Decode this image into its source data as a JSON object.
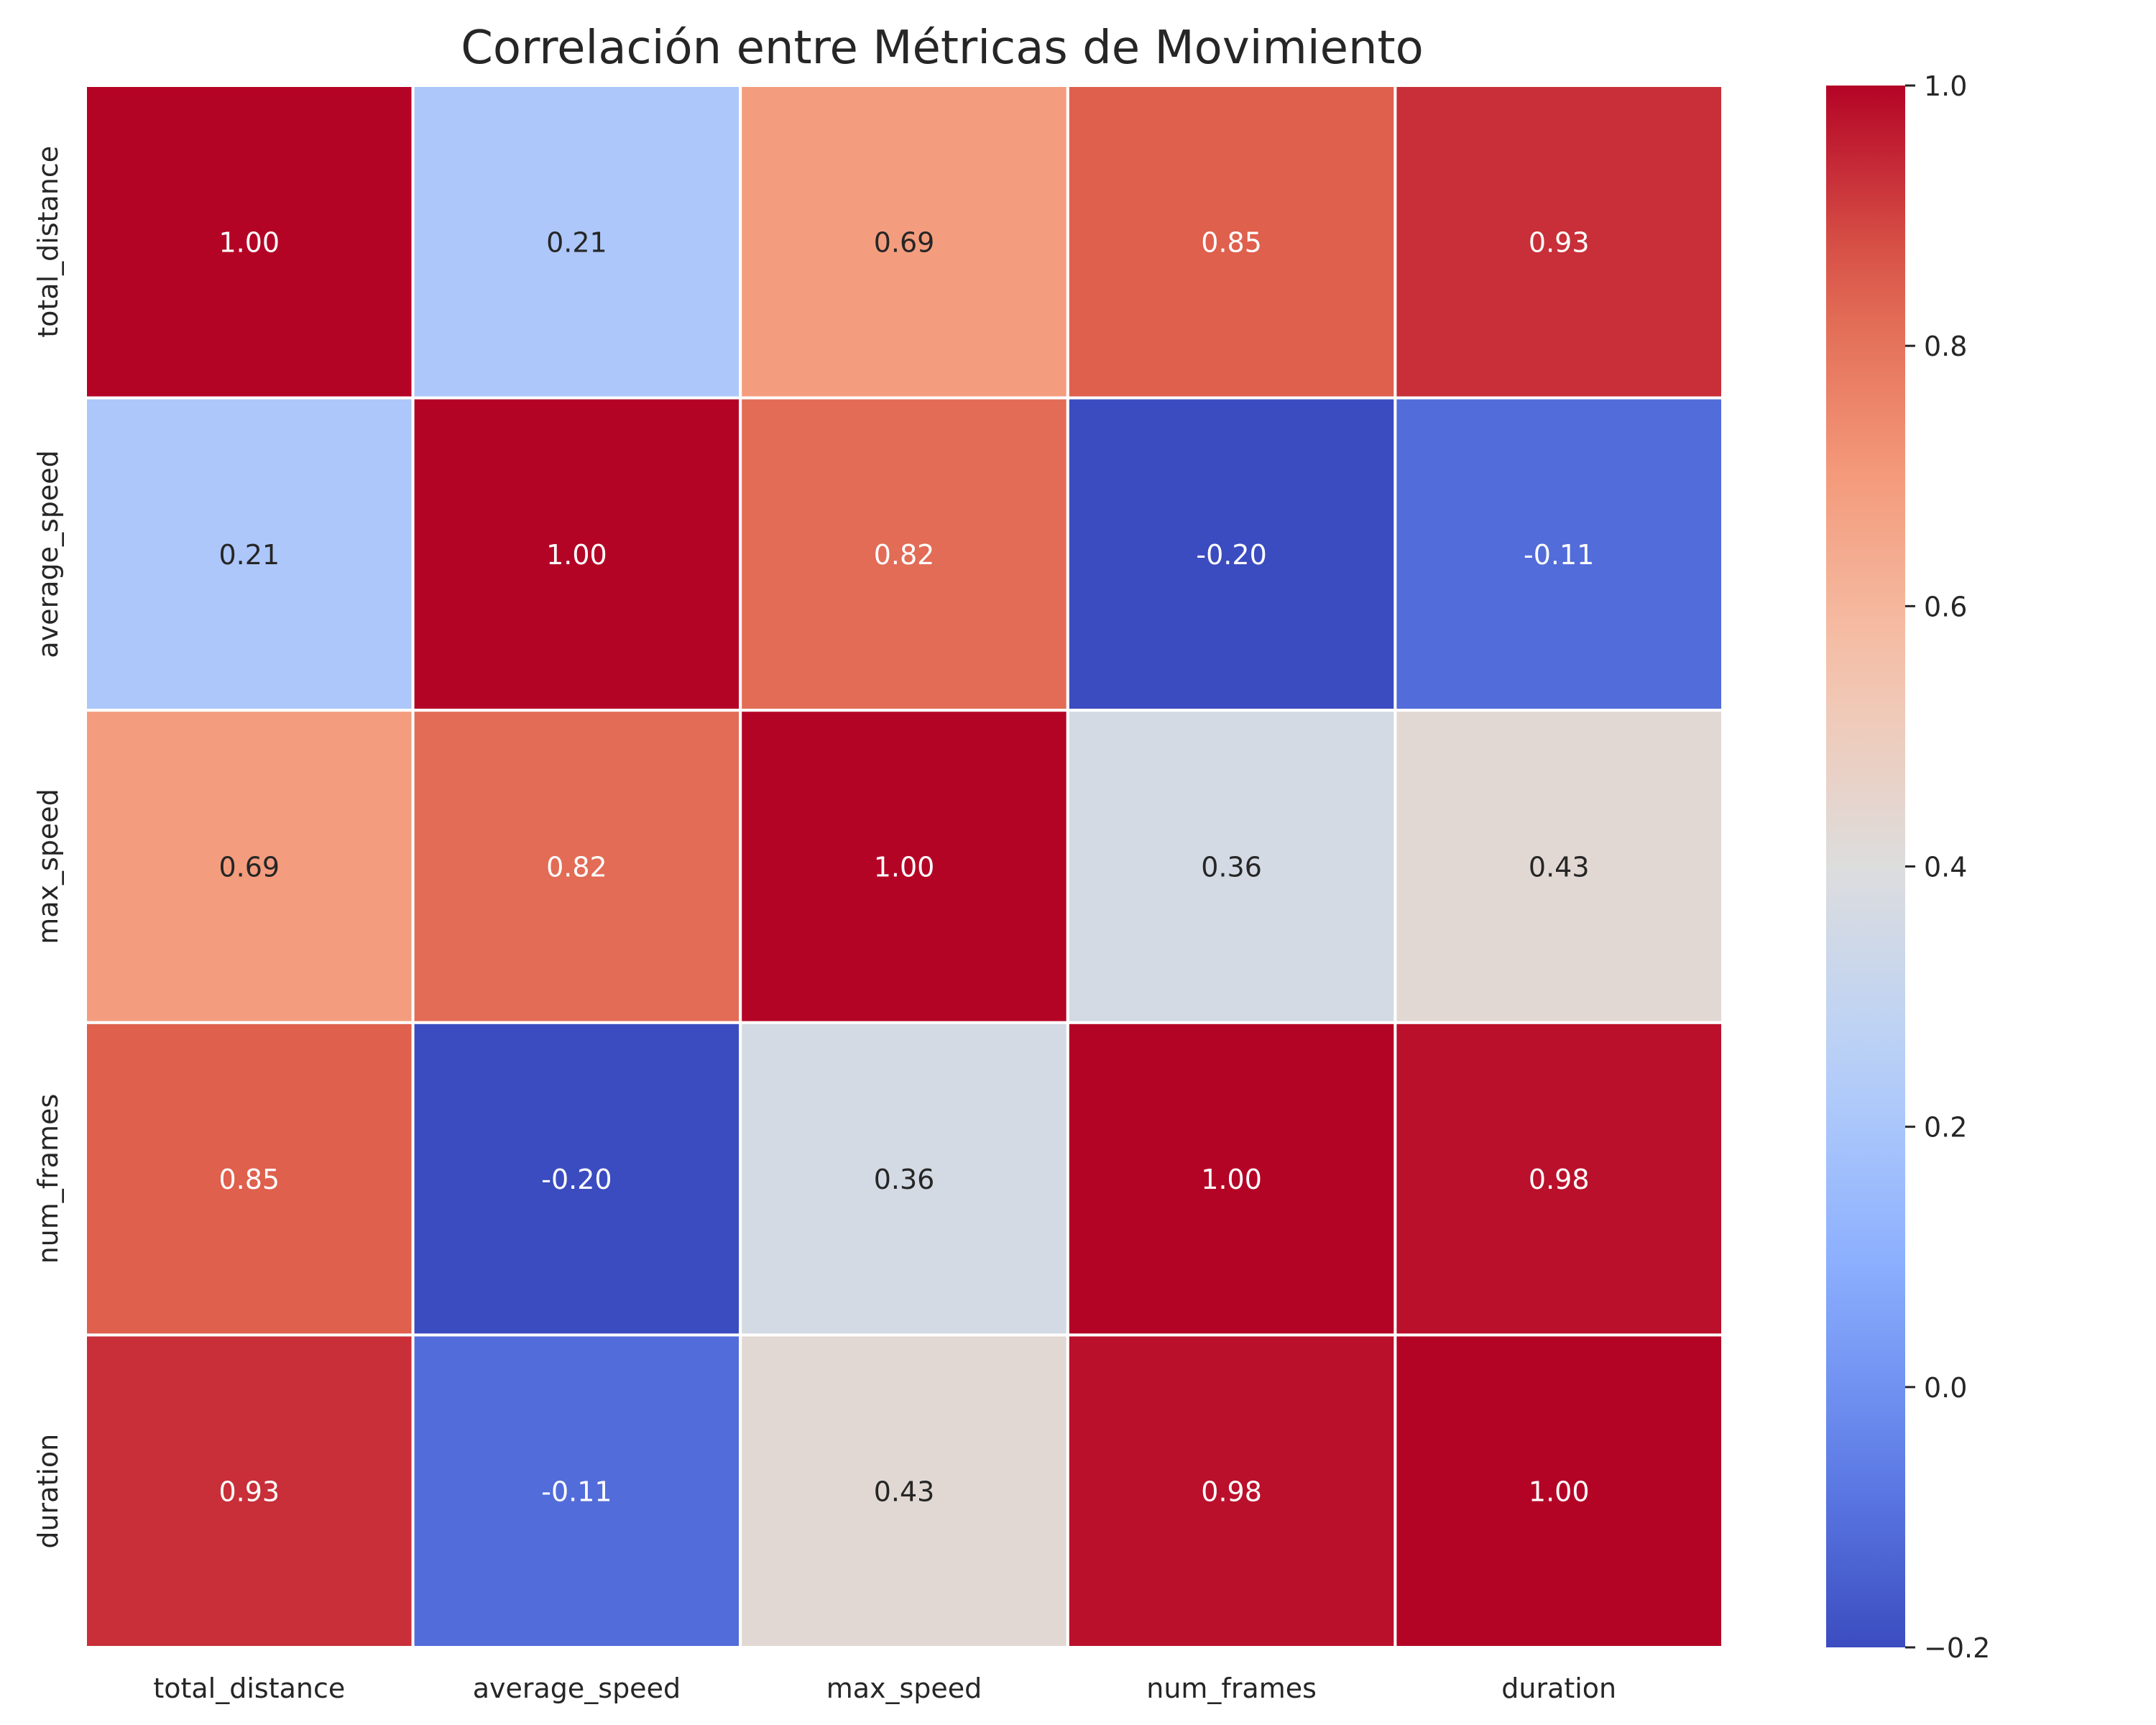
{
  "chart_data": {
    "type": "heatmap",
    "title": "Correlación entre Métricas de Movimiento",
    "xlabel": "",
    "ylabel": "",
    "x_categories": [
      "total_distance",
      "average_speed",
      "max_speed",
      "num_frames",
      "duration"
    ],
    "y_categories": [
      "total_distance",
      "average_speed",
      "max_speed",
      "num_frames",
      "duration"
    ],
    "values": [
      [
        1.0,
        0.21,
        0.69,
        0.85,
        0.93
      ],
      [
        0.21,
        1.0,
        0.82,
        -0.2,
        -0.11
      ],
      [
        0.69,
        0.82,
        1.0,
        0.36,
        0.43
      ],
      [
        0.85,
        -0.2,
        0.36,
        1.0,
        0.98
      ],
      [
        0.93,
        -0.11,
        0.43,
        0.98,
        1.0
      ]
    ],
    "value_format": "2 decimals",
    "colormap": "coolwarm",
    "colorbar": {
      "range": [
        -0.2,
        1.0
      ],
      "ticks": [
        -0.2,
        0.0,
        0.2,
        0.4,
        0.6,
        0.8,
        1.0
      ],
      "tick_labels": [
        "−0.2",
        "0.0",
        "0.2",
        "0.4",
        "0.6",
        "0.8",
        "1.0"
      ],
      "placement": "right"
    },
    "grid": false
  }
}
